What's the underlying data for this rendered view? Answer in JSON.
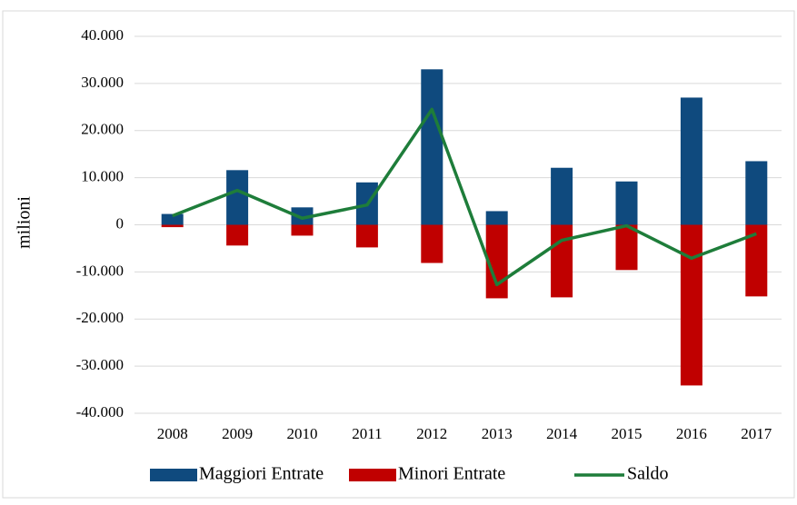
{
  "chart_data": {
    "type": "bar",
    "y_label": "milioni",
    "categories": [
      "2008",
      "2009",
      "2010",
      "2011",
      "2012",
      "2013",
      "2014",
      "2015",
      "2016",
      "2017"
    ],
    "series": [
      {
        "name": "Maggiori Entrate",
        "color": "#0f4a7e",
        "type": "bar",
        "values": [
          2300,
          11600,
          3700,
          9000,
          33000,
          2900,
          12100,
          9200,
          27000,
          13500
        ]
      },
      {
        "name": "Minori Entrate",
        "color": "#c00000",
        "type": "bar",
        "values": [
          -500,
          -4400,
          -2300,
          -4800,
          -8100,
          -15600,
          -15400,
          -9600,
          -34100,
          -15200
        ]
      },
      {
        "name": "Saldo",
        "color": "#1e7d3a",
        "type": "line",
        "values": [
          1900,
          7300,
          1400,
          4200,
          24500,
          -12700,
          -3300,
          -200,
          -7100,
          -1900
        ]
      }
    ],
    "ylim": [
      -40000,
      40000
    ],
    "yticks": [
      {
        "value": -40000,
        "label": "-40.000"
      },
      {
        "value": -30000,
        "label": "-30.000"
      },
      {
        "value": -20000,
        "label": "-20.000"
      },
      {
        "value": -10000,
        "label": "-10.000"
      },
      0,
      {
        "value": 10000,
        "label": "10.000"
      },
      {
        "value": 20000,
        "label": "20.000"
      },
      {
        "value": 30000,
        "label": "30.000"
      },
      {
        "value": 40000,
        "label": "40.000"
      }
    ],
    "grid": true,
    "legend": "bottom"
  }
}
